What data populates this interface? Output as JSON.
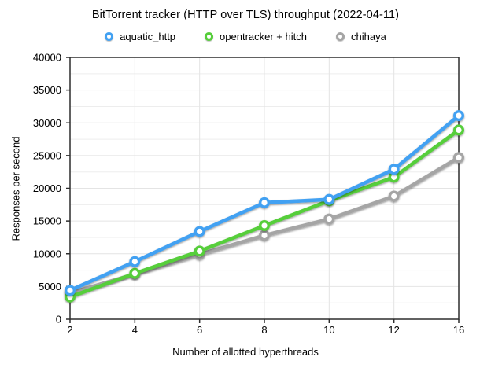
{
  "chart_data": {
    "type": "line",
    "title": "BitTorrent tracker (HTTP over TLS) throughput (2022-04-11)",
    "xlabel": "Number of allotted hyperthreads",
    "ylabel": "Responses per second",
    "categories": [
      "2",
      "4",
      "6",
      "8",
      "10",
      "12",
      "16"
    ],
    "series": [
      {
        "name": "aquatic_http",
        "color": "#42a1f2",
        "values": [
          4400,
          8800,
          13400,
          17800,
          18300,
          22900,
          31100
        ]
      },
      {
        "name": "opentracker + hitch",
        "color": "#56ce3a",
        "values": [
          3400,
          7000,
          10400,
          14300,
          18100,
          21700,
          28900
        ]
      },
      {
        "name": "chihaya",
        "color": "#a5a5a5",
        "values": [
          4000,
          6900,
          9900,
          12800,
          15300,
          18800,
          24700
        ]
      }
    ],
    "ylim": [
      0,
      40000
    ],
    "y_ticks": [
      0,
      5000,
      10000,
      15000,
      20000,
      25000,
      30000,
      35000,
      40000
    ],
    "y_minor_step": 2500,
    "grid": "on",
    "legend_position": "top",
    "marker_style": "open-circle",
    "colors": {
      "gridline": "#e4e4e4",
      "minor_gridline": "#ededed",
      "plot_border": "#2d2d2d",
      "background": "#ffffff",
      "text": "#000000"
    }
  }
}
